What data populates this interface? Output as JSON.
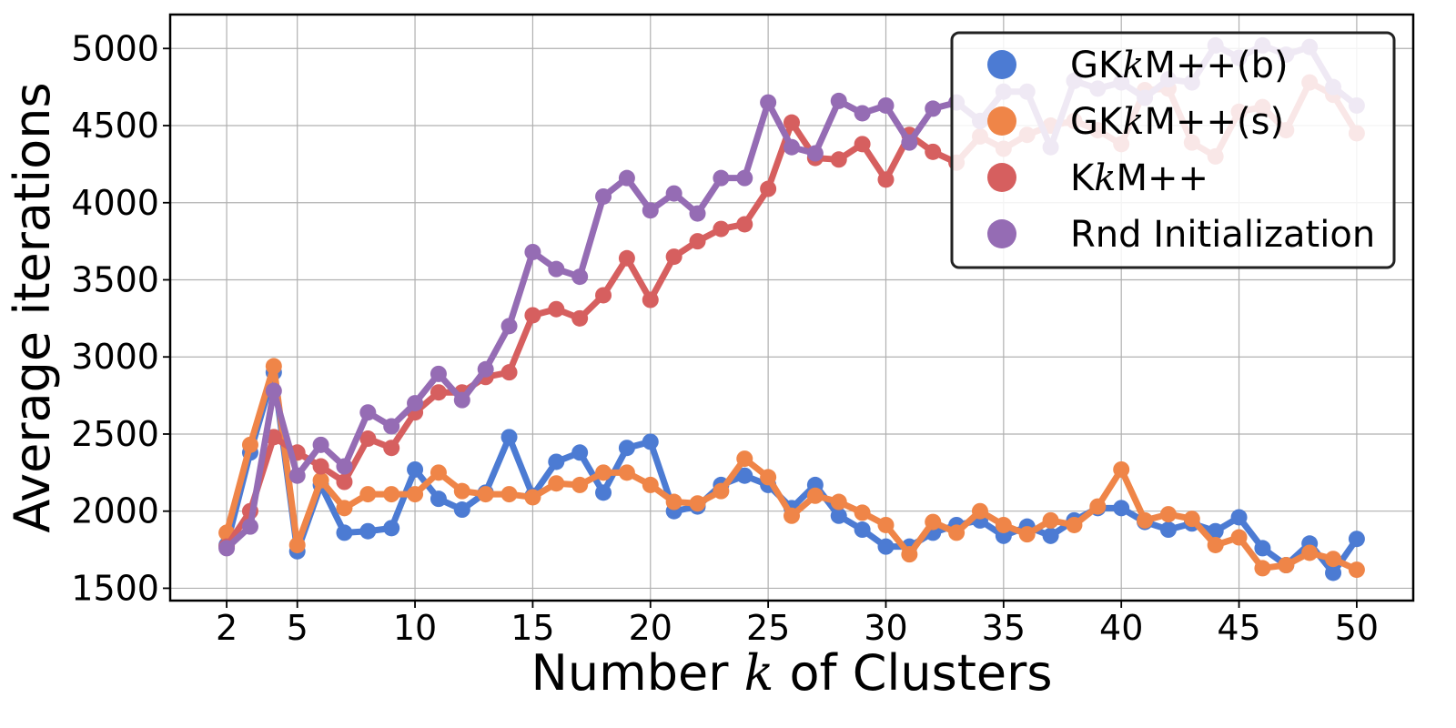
{
  "chart_data": {
    "type": "line",
    "xlabel_parts": [
      "Number ",
      "k",
      " of Clusters"
    ],
    "ylabel": "Average iterations",
    "xlim": [
      -0.4,
      52.4
    ],
    "ylim": [
      1420,
      5220
    ],
    "xticks": [
      2,
      5,
      10,
      15,
      20,
      25,
      30,
      35,
      40,
      45,
      50
    ],
    "yticks": [
      1500,
      2000,
      2500,
      3000,
      3500,
      4000,
      4500,
      5000
    ],
    "grid": true,
    "legend_position": "top-right",
    "x": [
      2,
      3,
      4,
      5,
      6,
      7,
      8,
      9,
      10,
      11,
      12,
      13,
      14,
      15,
      16,
      17,
      18,
      19,
      20,
      21,
      22,
      23,
      24,
      25,
      26,
      27,
      28,
      29,
      30,
      31,
      32,
      33,
      34,
      35,
      36,
      37,
      38,
      39,
      40,
      41,
      42,
      43,
      44,
      45,
      46,
      47,
      48,
      49,
      50
    ],
    "series": [
      {
        "name_parts": [
          "GK",
          "k",
          "M++(b)"
        ],
        "color": "#4c7bd3",
        "values": [
          1780,
          2380,
          2900,
          1740,
          2170,
          1860,
          1870,
          1890,
          2270,
          2080,
          2010,
          2120,
          2480,
          2100,
          2320,
          2380,
          2120,
          2410,
          2450,
          2000,
          2030,
          2170,
          2230,
          2170,
          2020,
          2170,
          1970,
          1880,
          1770,
          1770,
          1860,
          1910,
          1940,
          1840,
          1900,
          1840,
          1940,
          2020,
          2020,
          1930,
          1880,
          1920,
          1870,
          1960,
          1760,
          1650,
          1790,
          1600,
          1820
        ]
      },
      {
        "name_parts": [
          "GK",
          "k",
          "M++(s)"
        ],
        "color": "#ef8548",
        "values": [
          1860,
          2430,
          2940,
          1780,
          2200,
          2020,
          2110,
          2110,
          2110,
          2250,
          2130,
          2110,
          2110,
          2090,
          2180,
          2170,
          2250,
          2250,
          2170,
          2060,
          2050,
          2130,
          2340,
          2220,
          1970,
          2100,
          2060,
          1990,
          1910,
          1720,
          1930,
          1860,
          2000,
          1910,
          1850,
          1940,
          1910,
          2030,
          2270,
          1940,
          1980,
          1950,
          1780,
          1830,
          1630,
          1650,
          1730,
          1690,
          1620
        ]
      },
      {
        "name_parts": [
          "K",
          "k",
          "M++"
        ],
        "color": "#d65f5f",
        "values": [
          1770,
          2000,
          2480,
          2380,
          2290,
          2190,
          2470,
          2410,
          2640,
          2770,
          2770,
          2870,
          2900,
          3270,
          3310,
          3250,
          3400,
          3640,
          3370,
          3650,
          3750,
          3830,
          3860,
          4090,
          4520,
          4290,
          4280,
          4380,
          4150,
          4440,
          4330,
          4260,
          4430,
          4350,
          4440,
          4500,
          4530,
          4470,
          4380,
          4730,
          4740,
          4390,
          4300,
          4590,
          4620,
          4470,
          4780,
          4700,
          4450
        ]
      },
      {
        "name_parts": [
          "Rnd Initialization"
        ],
        "color": "#956cb4",
        "values": [
          1760,
          1900,
          2780,
          2230,
          2430,
          2290,
          2640,
          2550,
          2700,
          2890,
          2720,
          2920,
          3200,
          3680,
          3570,
          3520,
          4040,
          4160,
          3950,
          4060,
          3930,
          4160,
          4160,
          4650,
          4360,
          4320,
          4660,
          4580,
          4630,
          4390,
          4610,
          4650,
          4530,
          4720,
          4720,
          4360,
          4790,
          4740,
          4780,
          4680,
          4800,
          4780,
          5020,
          4940,
          5020,
          4960,
          5010,
          4750,
          4630
        ]
      }
    ]
  }
}
